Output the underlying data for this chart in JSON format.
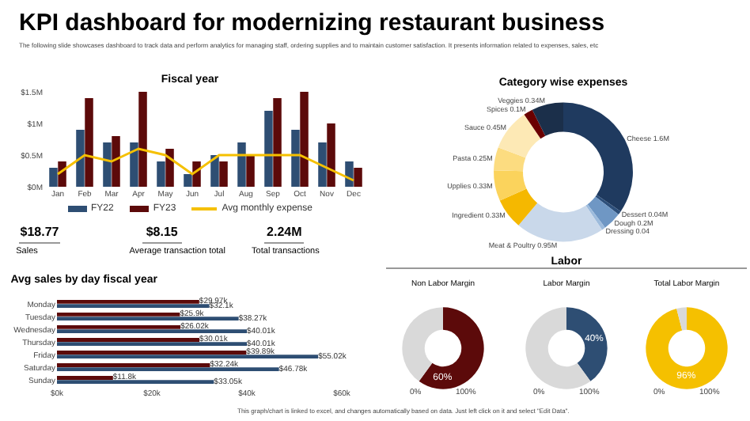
{
  "chart_data": [
    {
      "type": "other",
      "title": "KPI dashboard for modernizing restaurant business",
      "subtitle": "The following slide showcases dashboard to track data and perform analytics for managing staff, ordering supplies and to maintain customer satisfaction. It presents information related to expenses, sales, etc",
      "annotations": [
        "This graph/chart is linked to excel, and changes automatically based on data. Just left click on it and select \"Edit Data\"."
      ]
    },
    {
      "type": "bar",
      "title": "Fiscal year",
      "categories": [
        "Jan",
        "Feb",
        "Mar",
        "Apr",
        "May",
        "Jun",
        "Jul",
        "Aug",
        "Sep",
        "Oct",
        "Nov",
        "Dec"
      ],
      "series": [
        {
          "name": "FY22",
          "color": "#2e4e73",
          "values": [
            0.3,
            0.9,
            0.7,
            0.7,
            0.4,
            0.2,
            0.5,
            0.7,
            1.2,
            0.9,
            0.7,
            0.4
          ]
        },
        {
          "name": "FY23",
          "color": "#5c0a0a",
          "values": [
            0.4,
            1.4,
            0.8,
            1.5,
            0.6,
            0.4,
            0.4,
            0.5,
            1.4,
            1.5,
            1.0,
            0.3
          ]
        },
        {
          "name": "Avg monthly expense",
          "type": "line",
          "color": "#f5c000",
          "values": [
            0.2,
            0.5,
            0.4,
            0.6,
            0.5,
            0.2,
            0.5,
            0.5,
            0.5,
            0.5,
            0.3,
            0.1
          ]
        }
      ],
      "ylim": [
        0,
        1.5
      ],
      "yticks": [
        {
          "value": 0,
          "label": "$0M"
        },
        {
          "value": 0.5,
          "label": "$0.5M"
        },
        {
          "value": 1,
          "label": "$1M"
        },
        {
          "value": 1.5,
          "label": "$1.5M"
        }
      ],
      "legend": "bottom",
      "line_style": "solid"
    },
    {
      "type": "donut",
      "title": "Category wise expenses",
      "categories": [
        "Cheese",
        "Dessert",
        "Dough",
        "Dressing",
        "Meat & Poultry",
        "Ingredient",
        "Upplies",
        "Pasta",
        "Sauce",
        "Spices",
        "Veggies"
      ],
      "values": [
        1.6,
        0.04,
        0.2,
        0.04,
        0.95,
        0.33,
        0.33,
        0.25,
        0.45,
        0.1,
        0.34
      ],
      "value_labels": [
        "1.6M",
        "0.04M",
        "0.2M",
        "0.04",
        "0.95M",
        "0.33M",
        "0.33M",
        "0.25M",
        "0.45M",
        "0.1M",
        "0.34M"
      ],
      "colors": [
        "#1f3a5f",
        "#2d4f7a",
        "#6f97c4",
        "#9dbbdc",
        "#c9d8ea",
        "#f5b800",
        "#fbd35c",
        "#fcdc80",
        "#fde9b5",
        "#6b0000",
        "#1b2f4a"
      ]
    },
    {
      "type": "other",
      "annotations": [
        "$18.77",
        "Sales",
        "$8.15",
        "Average transaction total",
        "2.24M",
        "Total transactions"
      ]
    },
    {
      "type": "bar",
      "orientation": "horizontal",
      "title": "Avg sales by day fiscal year",
      "categories": [
        "Monday",
        "Tuesday",
        "Wednesday",
        "Thursday",
        "Friday",
        "Saturday",
        "Sunday"
      ],
      "series": [
        {
          "color": "#5c0a0a",
          "values": [
            29.97,
            25.9,
            26.02,
            30.01,
            39.89,
            32.24,
            11.8
          ],
          "value_labels": [
            "$29.97k",
            "$25.9k",
            "$26.02k",
            "$30.01k",
            "$39.89k",
            "$32.24k",
            "$11.8k"
          ]
        },
        {
          "color": "#2e4e73",
          "values": [
            32.1,
            38.27,
            40.01,
            40.01,
            55.02,
            46.78,
            33.05
          ],
          "value_labels": [
            "$32.1k",
            "$38.27k",
            "$40.01k",
            "$40.01k",
            "$55.02k",
            "$46.78k",
            "$33.05k"
          ]
        }
      ],
      "xlim": [
        0,
        60
      ],
      "xticks": [
        {
          "value": 0,
          "label": "$0k"
        },
        {
          "value": 20,
          "label": "$20k"
        },
        {
          "value": 40,
          "label": "$40k"
        },
        {
          "value": 60,
          "label": "$60k"
        }
      ]
    },
    {
      "type": "other",
      "title": "Labor"
    },
    {
      "type": "donut",
      "title": "Non Labor Margin",
      "categories": [
        null,
        null
      ],
      "values": [
        60,
        40
      ],
      "value_labels": [
        "60%",
        null
      ],
      "colors": [
        "#5c0a0a",
        "#d9d9d9"
      ],
      "annotations": [
        "0%",
        "100%"
      ]
    },
    {
      "type": "donut",
      "title": "Labor Margin",
      "categories": [
        null,
        null
      ],
      "values": [
        40,
        60
      ],
      "value_labels": [
        "40%",
        null
      ],
      "colors": [
        "#2e4e73",
        "#d9d9d9"
      ],
      "annotations": [
        "0%",
        "100%"
      ]
    },
    {
      "type": "donut",
      "title": "Total Labor Margin",
      "categories": [
        null,
        null
      ],
      "values": [
        96,
        4
      ],
      "value_labels": [
        "96%",
        null
      ],
      "colors": [
        "#f5c000",
        "#d9d9d9"
      ],
      "annotations": [
        "0%",
        "100%"
      ]
    }
  ]
}
